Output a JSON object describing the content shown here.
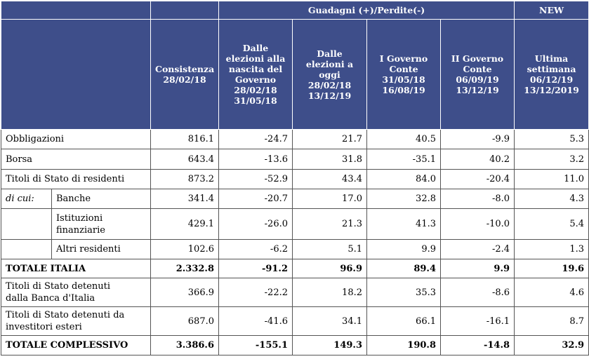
{
  "header": {
    "group_gains": "Guadagni (+)/Perdite(-)",
    "group_new": "NEW",
    "col1": [
      "Consistenza",
      "28/02/18"
    ],
    "col2": [
      "Dalle",
      "elezioni alla",
      "nascita del",
      "Governo",
      "28/02/18",
      "31/05/18"
    ],
    "col3": [
      "Dalle",
      "elezioni a",
      "oggi",
      "28/02/18",
      "13/12/19"
    ],
    "col4": [
      "I Governo",
      "Conte",
      "31/05/18",
      "16/08/19"
    ],
    "col5": [
      "II Governo",
      "Conte",
      "06/09/19",
      "13/12/19"
    ],
    "col6": [
      "Ultima",
      "settimana",
      "06/12/19",
      "13/12/2019"
    ]
  },
  "rows": [
    {
      "label": "Obbligazioni",
      "values": [
        "816.1",
        "-24.7",
        "21.7",
        "40.5",
        "-9.9",
        "5.3"
      ]
    },
    {
      "label": "Borsa",
      "values": [
        "643.4",
        "-13.6",
        "31.8",
        "-35.1",
        "40.2",
        "3.2"
      ]
    },
    {
      "label": "Titoli di Stato di residenti",
      "values": [
        "873.2",
        "-52.9",
        "43.4",
        "84.0",
        "-20.4",
        "11.0"
      ]
    },
    {
      "prefix": "di cui:",
      "label": "Banche",
      "values": [
        "341.4",
        "-20.7",
        "17.0",
        "32.8",
        "-8.0",
        "4.3"
      ]
    },
    {
      "label1": "Istituzioni",
      "label2": "finanziarie",
      "values": [
        "429.1",
        "-26.0",
        "21.3",
        "41.3",
        "-10.0",
        "5.4"
      ]
    },
    {
      "label": "Altri residenti",
      "values": [
        "102.6",
        "-6.2",
        "5.1",
        "9.9",
        "-2.4",
        "1.3"
      ]
    },
    {
      "label": "TOTALE ITALIA",
      "values": [
        "2.332.8",
        "-91.2",
        "96.9",
        "89.4",
        "9.9",
        "19.6"
      ]
    },
    {
      "label1": "Titoli di Stato detenuti",
      "label2": "dalla Banca d'Italia",
      "values": [
        "366.9",
        "-22.2",
        "18.2",
        "35.3",
        "-8.6",
        "4.6"
      ]
    },
    {
      "label1": "Titoli di Stato detenuti da",
      "label2": "investitori esteri",
      "values": [
        "687.0",
        "-41.6",
        "34.1",
        "66.1",
        "-16.1",
        "8.7"
      ]
    },
    {
      "label": "TOTALE COMPLESSIVO",
      "values": [
        "3.386.6",
        "-155.1",
        "149.3",
        "190.8",
        "-14.8",
        "32.9"
      ]
    }
  ]
}
